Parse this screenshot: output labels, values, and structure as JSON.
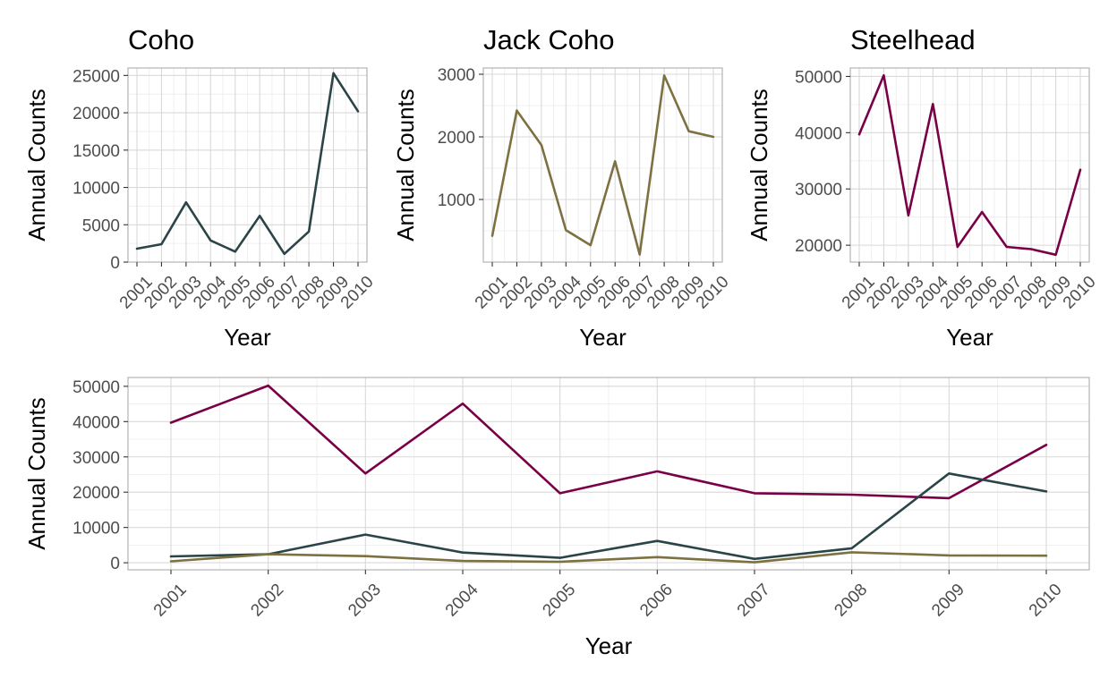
{
  "chart_data": [
    {
      "type": "line",
      "title": "Coho",
      "xlabel": "Year",
      "ylabel": "Annual Counts",
      "x": [
        "2001",
        "2002",
        "2003",
        "2004",
        "2005",
        "2006",
        "2007",
        "2008",
        "2009",
        "2010"
      ],
      "series": [
        {
          "name": "",
          "color": "#2b4447",
          "values": [
            1800,
            2400,
            8000,
            2900,
            1400,
            6200,
            1100,
            4100,
            25300,
            20200
          ]
        }
      ],
      "ylim": [
        0,
        26000
      ],
      "yticks": [
        0,
        5000,
        10000,
        15000,
        20000,
        25000
      ],
      "grid": true
    },
    {
      "type": "line",
      "title": "Jack Coho",
      "xlabel": "Year",
      "ylabel": "Annual Counts",
      "x": [
        "2001",
        "2002",
        "2003",
        "2004",
        "2005",
        "2006",
        "2007",
        "2008",
        "2009",
        "2010"
      ],
      "series": [
        {
          "name": "",
          "color": "#7d7142",
          "values": [
            420,
            2420,
            1870,
            510,
            270,
            1610,
            120,
            2980,
            2090,
            2000
          ]
        }
      ],
      "ylim": [
        0,
        3100
      ],
      "yticks": [
        1000,
        2000,
        3000
      ],
      "grid": true
    },
    {
      "type": "line",
      "title": "Steelhead",
      "xlabel": "Year",
      "ylabel": "Annual Counts",
      "x": [
        "2001",
        "2002",
        "2003",
        "2004",
        "2005",
        "2006",
        "2007",
        "2008",
        "2009",
        "2010"
      ],
      "series": [
        {
          "name": "",
          "color": "#790046",
          "values": [
            39700,
            50200,
            25300,
            45100,
            19700,
            25900,
            19700,
            19300,
            18300,
            33400
          ]
        }
      ],
      "ylim": [
        17000,
        51500
      ],
      "yticks": [
        20000,
        30000,
        40000,
        50000
      ],
      "grid": true
    },
    {
      "type": "line",
      "title": "",
      "xlabel": "Year",
      "ylabel": "Annual Counts",
      "x": [
        "2001",
        "2002",
        "2003",
        "2004",
        "2005",
        "2006",
        "2007",
        "2008",
        "2009",
        "2010"
      ],
      "series": [
        {
          "name": "",
          "color": "#790046",
          "values": [
            39700,
            50200,
            25300,
            45100,
            19700,
            25900,
            19700,
            19300,
            18300,
            33400
          ]
        },
        {
          "name": "",
          "color": "#2b4447",
          "values": [
            1800,
            2400,
            8000,
            2900,
            1400,
            6200,
            1100,
            4100,
            25300,
            20200
          ]
        },
        {
          "name": "",
          "color": "#7d7142",
          "values": [
            420,
            2420,
            1870,
            510,
            270,
            1610,
            120,
            2980,
            2090,
            2000
          ]
        }
      ],
      "ylim": [
        -2000,
        52500
      ],
      "yticks": [
        0,
        10000,
        20000,
        30000,
        40000,
        50000
      ],
      "grid": true
    }
  ]
}
